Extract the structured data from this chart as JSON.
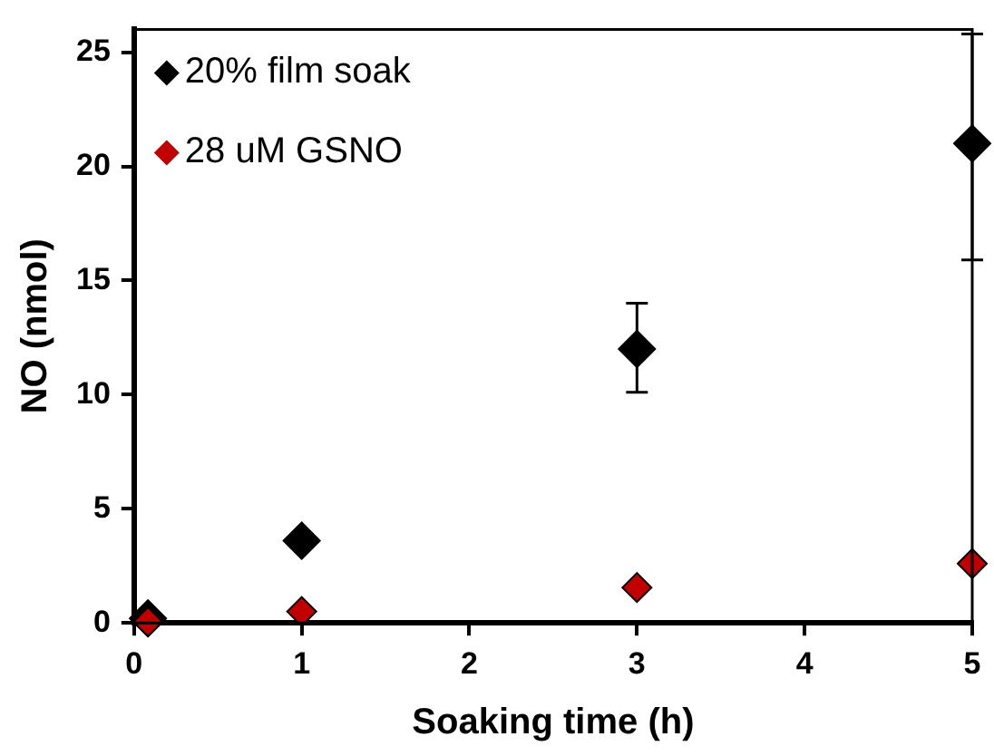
{
  "chart_data": {
    "type": "scatter",
    "xlabel": "Soaking time (h)",
    "ylabel": "NO (nmol)",
    "x": [
      0.083,
      1,
      3,
      5
    ],
    "series": [
      {
        "name": "20% film soak",
        "color": "#000000",
        "values": [
          0.2,
          3.6,
          12.0,
          21.0
        ],
        "errors": [
          null,
          0.3,
          [
            10.1,
            14.0
          ],
          [
            15.9,
            25.8
          ]
        ]
      },
      {
        "name": "28 uM GSNO",
        "color": "#c00000",
        "values": [
          0.05,
          0.5,
          1.55,
          2.6
        ]
      }
    ],
    "xlim": [
      0,
      5
    ],
    "xticks": [
      0,
      1,
      2,
      3,
      4,
      5
    ],
    "ylim": [
      0,
      26
    ],
    "yticks": [
      0,
      5,
      10,
      15,
      20,
      25
    ],
    "marker": "diamond",
    "legend": "top left",
    "grid": false
  }
}
